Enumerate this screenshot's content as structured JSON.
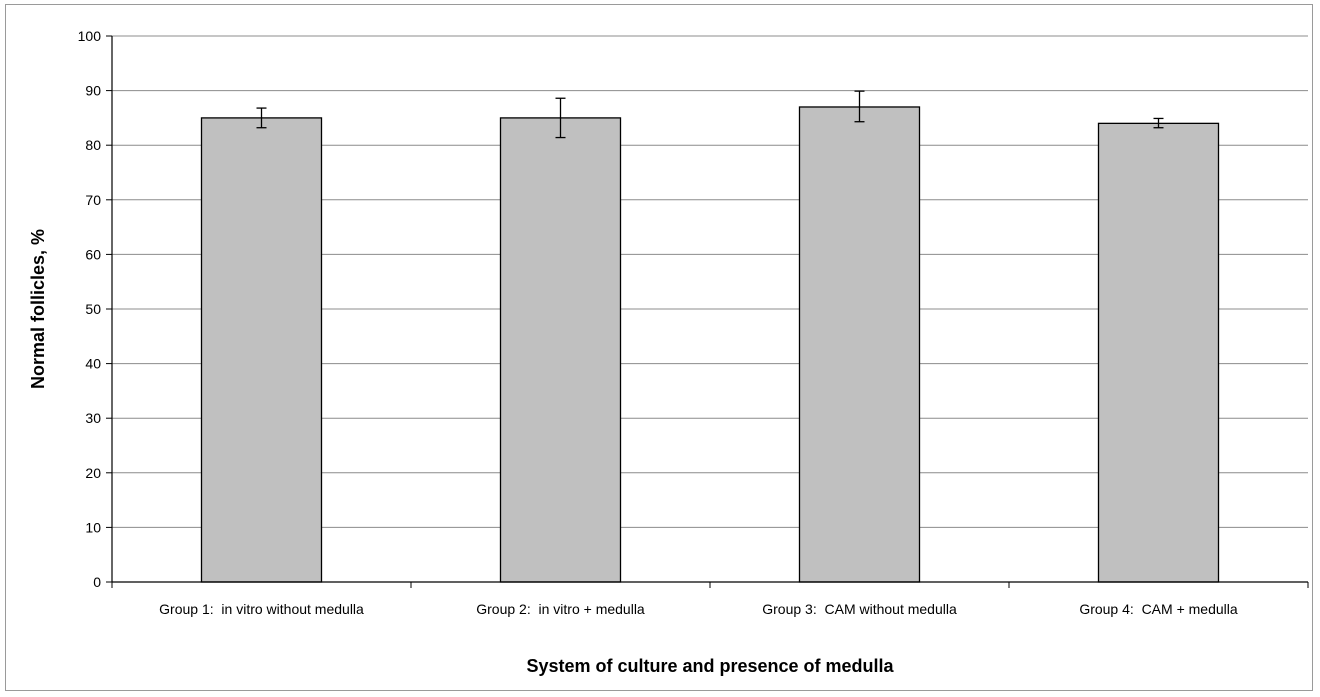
{
  "chart_data": {
    "type": "bar",
    "title": "",
    "xlabel": "System of culture and presence of medulla",
    "ylabel": "Normal follicles, %",
    "categories": [
      "Group 1:  in vitro without medulla",
      "Group 2:  in vitro + medulla",
      "Group 3:  CAM without medulla",
      "Group 4:  CAM + medulla"
    ],
    "values": [
      85,
      85,
      87,
      84
    ],
    "error_low": [
      83.2,
      81.4,
      84.3,
      83.2
    ],
    "error_high": [
      86.8,
      88.6,
      89.9,
      84.9
    ],
    "ylim": [
      0,
      100
    ],
    "yticks": [
      0,
      10,
      20,
      30,
      40,
      50,
      60,
      70,
      80,
      90,
      100
    ],
    "grid": true,
    "legend": "none",
    "colors": {
      "bar_fill": "#c0c0c0",
      "bar_stroke": "#000000",
      "grid": "#8c8c8c",
      "axis": "#000000"
    }
  }
}
